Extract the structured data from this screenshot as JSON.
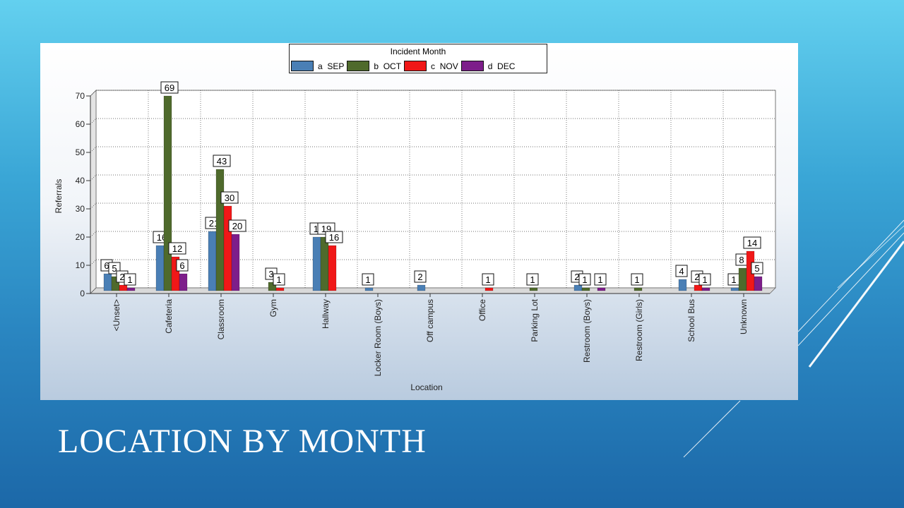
{
  "slide": {
    "title": "LOCATION BY MONTH"
  },
  "colors": {
    "sep": "#4a7fb5",
    "oct": "#4f6a2c",
    "nov": "#f01818",
    "dec": "#7d1e8a"
  },
  "chart_data": {
    "type": "bar",
    "title": "",
    "legend_title": "Incident Month",
    "legend_position": "top-center",
    "xlabel": "Location",
    "ylabel": "Referrals",
    "ylim": [
      0,
      70
    ],
    "yticks": [
      0,
      10,
      20,
      30,
      40,
      50,
      60,
      70
    ],
    "grid": true,
    "categories": [
      "<Unset>",
      "Cafeteria",
      "Classroom",
      "Gym",
      "Hallway",
      "Locker Room (Boys)",
      "Off campus",
      "Office",
      "Parking Lot",
      "Restroom (Boys)",
      "Restroom (Girls)",
      "School Bus",
      "Unknown"
    ],
    "series": [
      {
        "name": "a  SEP",
        "color": "#4a7fb5",
        "values": [
          6,
          16,
          21,
          0,
          19,
          1,
          2,
          0,
          0,
          2,
          0,
          4,
          1
        ]
      },
      {
        "name": "b  OCT",
        "color": "#4f6a2c",
        "values": [
          5,
          69,
          43,
          3,
          19,
          0,
          0,
          0,
          1,
          1,
          1,
          0,
          8
        ]
      },
      {
        "name": "c  NOV",
        "color": "#f01818",
        "values": [
          2,
          12,
          30,
          1,
          16,
          0,
          0,
          1,
          0,
          0,
          0,
          2,
          14
        ]
      },
      {
        "name": "d  DEC",
        "color": "#7d1e8a",
        "values": [
          1,
          6,
          20,
          0,
          0,
          0,
          0,
          0,
          0,
          1,
          0,
          1,
          5
        ]
      }
    ]
  }
}
